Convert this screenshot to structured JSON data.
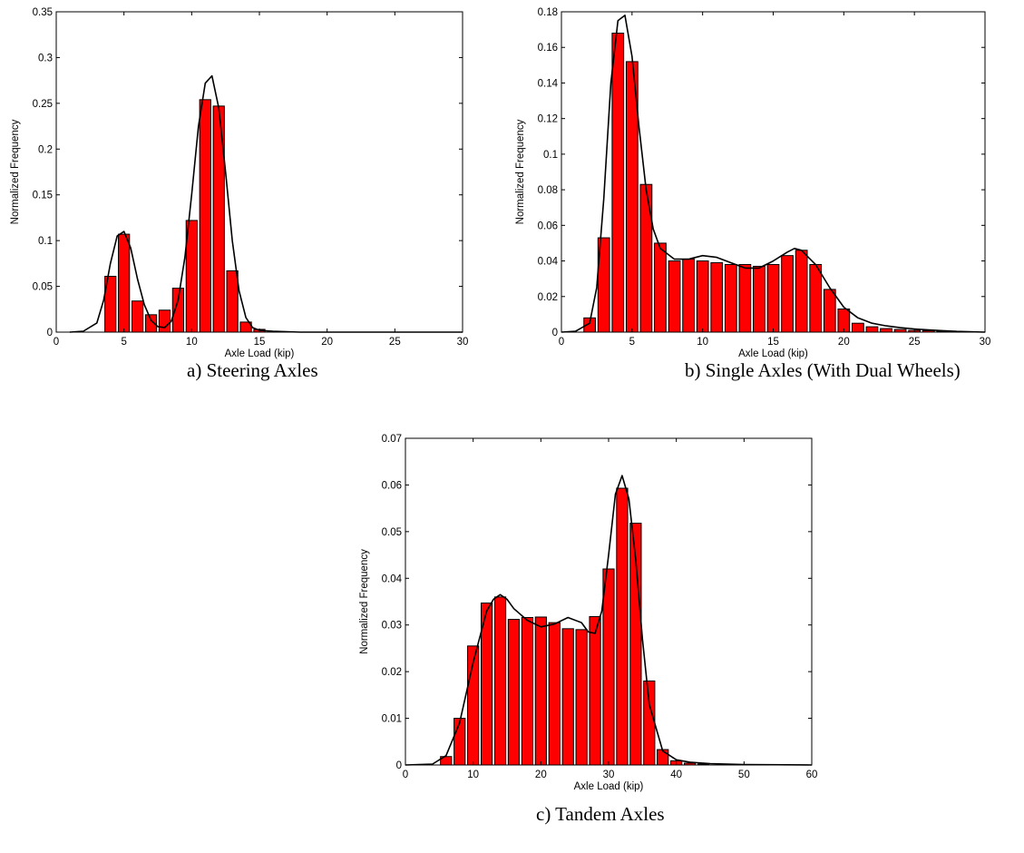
{
  "chart_data": [
    {
      "type": "bar",
      "caption": "a) Steering Axles",
      "xlabel": "Axle Load (kip)",
      "ylabel": "Normalized Frequency",
      "xlim": [
        0,
        30
      ],
      "ylim": [
        0,
        0.35
      ],
      "xticks": [
        0,
        5,
        10,
        15,
        20,
        25,
        30
      ],
      "yticks": [
        0,
        0.05,
        0.1,
        0.15,
        0.2,
        0.25,
        0.3,
        0.35
      ],
      "bin_width": 1,
      "x": [
        4,
        5,
        6,
        7,
        8,
        9,
        10,
        11,
        12,
        13,
        14,
        15
      ],
      "values": [
        0.061,
        0.107,
        0.034,
        0.019,
        0.024,
        0.048,
        0.122,
        0.254,
        0.247,
        0.067,
        0.011,
        0.003
      ],
      "fit": {
        "x": [
          1,
          2,
          3,
          3.5,
          4,
          4.5,
          5,
          5.5,
          6,
          6.5,
          7,
          7.5,
          8,
          8.5,
          9,
          9.5,
          10,
          10.5,
          11,
          11.5,
          12,
          12.5,
          13,
          13.5,
          14,
          14.5,
          15,
          16,
          18,
          20,
          25,
          30
        ],
        "y": [
          0,
          0.001,
          0.01,
          0.035,
          0.075,
          0.105,
          0.11,
          0.092,
          0.058,
          0.03,
          0.013,
          0.006,
          0.005,
          0.012,
          0.035,
          0.082,
          0.15,
          0.225,
          0.272,
          0.28,
          0.245,
          0.175,
          0.1,
          0.045,
          0.016,
          0.005,
          0.002,
          0.001,
          0,
          0,
          0,
          0
        ]
      },
      "grid": false
    },
    {
      "type": "bar",
      "caption": "b) Single Axles (With Dual Wheels)",
      "xlabel": "Axle Load (kip)",
      "ylabel": "Normalized Frequency",
      "xlim": [
        0,
        30
      ],
      "ylim": [
        0,
        0.18
      ],
      "xticks": [
        0,
        5,
        10,
        15,
        20,
        25,
        30
      ],
      "yticks": [
        0,
        0.02,
        0.04,
        0.06,
        0.08,
        0.1,
        0.12,
        0.14,
        0.16,
        0.18
      ],
      "bin_width": 1,
      "x": [
        2,
        3,
        4,
        5,
        6,
        7,
        8,
        9,
        10,
        11,
        12,
        13,
        14,
        15,
        16,
        17,
        18,
        19,
        20,
        21,
        22,
        23,
        24,
        25,
        26,
        27
      ],
      "values": [
        0.008,
        0.053,
        0.168,
        0.152,
        0.083,
        0.05,
        0.04,
        0.041,
        0.04,
        0.039,
        0.038,
        0.038,
        0.037,
        0.038,
        0.043,
        0.046,
        0.038,
        0.024,
        0.013,
        0.005,
        0.003,
        0.002,
        0.0015,
        0.001,
        0.0008,
        0.0005
      ],
      "fit": {
        "x": [
          0,
          1,
          2,
          2.5,
          3,
          3.5,
          4,
          4.5,
          5,
          5.5,
          6,
          6.5,
          7,
          8,
          9,
          10,
          11,
          12,
          13,
          14,
          15,
          16,
          16.5,
          17,
          18,
          19,
          20,
          21,
          22,
          23,
          24,
          25,
          26,
          27,
          28,
          30
        ],
        "y": [
          0,
          0.0005,
          0.005,
          0.025,
          0.075,
          0.14,
          0.175,
          0.178,
          0.155,
          0.115,
          0.08,
          0.058,
          0.047,
          0.041,
          0.041,
          0.043,
          0.042,
          0.039,
          0.036,
          0.036,
          0.04,
          0.045,
          0.047,
          0.046,
          0.038,
          0.025,
          0.014,
          0.008,
          0.005,
          0.0035,
          0.0025,
          0.0018,
          0.0012,
          0.0008,
          0.0004,
          0
        ]
      },
      "grid": false
    },
    {
      "type": "bar",
      "caption": "c) Tandem Axles",
      "xlabel": "Axle Load (kip)",
      "ylabel": "Normalized Frequency",
      "xlim": [
        0,
        60
      ],
      "ylim": [
        0,
        0.07
      ],
      "xticks": [
        0,
        10,
        20,
        30,
        40,
        50,
        60
      ],
      "yticks": [
        0,
        0.01,
        0.02,
        0.03,
        0.04,
        0.05,
        0.06,
        0.07
      ],
      "bin_width": 2,
      "x": [
        6,
        8,
        10,
        12,
        14,
        16,
        18,
        20,
        22,
        24,
        26,
        28,
        30,
        32,
        34,
        36,
        38,
        40,
        42,
        44
      ],
      "values": [
        0.0018,
        0.01,
        0.0255,
        0.0347,
        0.036,
        0.0312,
        0.0316,
        0.0317,
        0.0305,
        0.0292,
        0.029,
        0.0318,
        0.042,
        0.0593,
        0.0518,
        0.018,
        0.0033,
        0.0009,
        0.0004,
        0.0002
      ],
      "fit": {
        "x": [
          0,
          4,
          6,
          8,
          10,
          12,
          13,
          14,
          15,
          16,
          18,
          20,
          22,
          24,
          26,
          27,
          28,
          29,
          30,
          31,
          32,
          33,
          34,
          35,
          36,
          38,
          40,
          42,
          45,
          50,
          60
        ],
        "y": [
          0,
          0.0002,
          0.002,
          0.009,
          0.022,
          0.033,
          0.0355,
          0.0365,
          0.0355,
          0.0335,
          0.031,
          0.0296,
          0.0302,
          0.0316,
          0.0305,
          0.0285,
          0.0282,
          0.033,
          0.045,
          0.058,
          0.062,
          0.057,
          0.044,
          0.027,
          0.013,
          0.003,
          0.0011,
          0.0006,
          0.0003,
          0.0001,
          0
        ]
      },
      "grid": false
    }
  ]
}
